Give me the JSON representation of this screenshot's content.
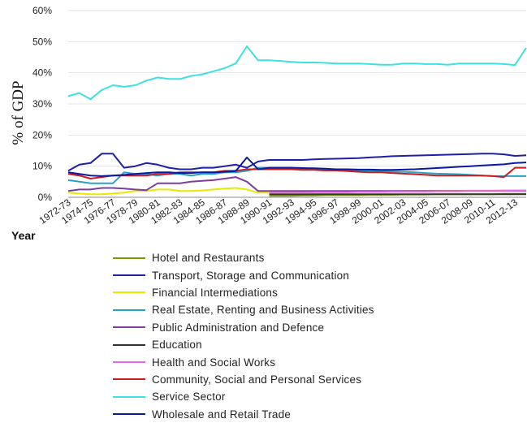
{
  "chart_data": {
    "type": "line",
    "xlabel": "Year",
    "ylabel": "% of GDP",
    "ylim": [
      0,
      60
    ],
    "yticks": [
      "0%",
      "10%",
      "20%",
      "30%",
      "40%",
      "50%",
      "60%"
    ],
    "x": [
      "1972-73",
      "1973-74",
      "1974-75",
      "1975-76",
      "1976-77",
      "1977-78",
      "1978-79",
      "1979-80",
      "1980-81",
      "1981-82",
      "1982-83",
      "1983-84",
      "1984-85",
      "1985-86",
      "1986-87",
      "1987-88",
      "1988-89",
      "1989-90",
      "1990-91",
      "1991-92",
      "1992-93",
      "1993-94",
      "1994-95",
      "1995-96",
      "1996-97",
      "1997-98",
      "1998-99",
      "1999-00",
      "2000-01",
      "2001-02",
      "2002-03",
      "2003-04",
      "2004-05",
      "2005-06",
      "2006-07",
      "2007-08",
      "2008-09",
      "2009-10",
      "2010-11",
      "2011-12",
      "2012-13",
      "2013-14"
    ],
    "xtick_labels": [
      "1972-73",
      "1974-75",
      "1976-77",
      "1978-79",
      "1980-81",
      "1982-83",
      "1984-85",
      "1986-87",
      "1988-89",
      "1990-91",
      "1992-93",
      "1994-95",
      "1996-97",
      "1998-99",
      "2000-01",
      "2002-03",
      "2004-05",
      "2006-07",
      "2008-09",
      "2010-11",
      "2012-13"
    ],
    "legend_position": "bottom",
    "series": [
      {
        "name": "Hotel and Restaurants",
        "color": "#7a9a01",
        "values": [
          null,
          null,
          null,
          null,
          null,
          null,
          null,
          null,
          null,
          null,
          null,
          null,
          null,
          null,
          null,
          null,
          null,
          null,
          0.5,
          0.5,
          0.5,
          0.6,
          0.6,
          0.7,
          0.7,
          0.7,
          0.7,
          0.8,
          0.8,
          0.8,
          0.9,
          0.9,
          0.9,
          1.0,
          1.0,
          1.0,
          1.0,
          1.0,
          1.0,
          1.1,
          1.1,
          1.1
        ]
      },
      {
        "name": "Transport, Storage and Communication",
        "color": "#1f1fa8",
        "values": [
          8.5,
          10.5,
          11,
          14,
          14,
          9.5,
          10,
          11,
          10.5,
          9.5,
          9,
          9,
          9.5,
          9.5,
          10,
          10.5,
          9.5,
          11.5,
          12,
          12,
          12,
          12,
          12.2,
          12.3,
          12.4,
          12.5,
          12.6,
          12.8,
          13,
          13.2,
          13.3,
          13.4,
          13.5,
          13.6,
          13.7,
          13.8,
          13.9,
          14,
          14,
          13.8,
          13.3,
          13.5
        ]
      },
      {
        "name": "Financial Intermediations",
        "color": "#e8e800",
        "values": [
          1.5,
          1.2,
          1.0,
          1.0,
          1.2,
          1.5,
          2.0,
          2.0,
          2.5,
          2.5,
          2.0,
          2.0,
          2.2,
          2.5,
          2.8,
          3.0,
          2.5,
          1.5,
          1.5,
          1.5,
          1.6,
          1.6,
          1.7,
          1.7,
          1.8,
          1.8,
          1.8,
          1.9,
          1.9,
          1.9,
          2.0,
          2.0,
          2.0,
          2.1,
          2.1,
          2.1,
          2.2,
          2.2,
          2.2,
          2.3,
          2.3,
          2.3
        ]
      },
      {
        "name": "Real Estate, Renting and Business Activities",
        "color": "#2aa0c8",
        "values": [
          5.5,
          5,
          4.5,
          4.5,
          4.5,
          8,
          7.5,
          7.5,
          7,
          7.5,
          7.5,
          7,
          7.5,
          7.5,
          8,
          8,
          8.5,
          9.5,
          9.5,
          9.5,
          9.5,
          9,
          9,
          8.8,
          8.8,
          8.6,
          8.5,
          8.5,
          8.4,
          8.3,
          8.2,
          8.0,
          7.8,
          7.6,
          7.5,
          7.4,
          7.2,
          7.0,
          6.8,
          6.8,
          6.8,
          6.8
        ]
      },
      {
        "name": "Public Administration and Defence",
        "color": "#7b3fa0",
        "values": [
          2.0,
          2.5,
          2.5,
          3.0,
          3.0,
          2.8,
          2.5,
          2.3,
          4.5,
          4.5,
          4.5,
          5.0,
          5.3,
          5.5,
          6.0,
          6.5,
          5.0,
          2.0,
          2.0,
          2.0,
          2.0,
          2.0,
          2.0,
          2.0,
          2.0,
          2.0,
          2.0,
          2.0,
          2.0,
          2.0,
          2.0,
          2.0,
          2.0,
          2.0,
          2.0,
          2.0,
          2.0,
          2.0,
          2.0,
          2.0,
          2.0,
          2.0
        ]
      },
      {
        "name": "Education",
        "color": "#333333",
        "values": [
          null,
          null,
          null,
          null,
          null,
          null,
          null,
          null,
          null,
          null,
          null,
          null,
          null,
          null,
          null,
          null,
          null,
          null,
          1.0,
          1.0,
          1.0,
          1.0,
          1.0,
          1.0,
          1.0,
          1.0,
          1.0,
          1.0,
          1.0,
          1.0,
          1.0,
          1.0,
          1.0,
          1.0,
          1.0,
          1.0,
          1.0,
          1.0,
          1.0,
          1.0,
          1.0,
          1.0
        ]
      },
      {
        "name": "Health and Social Works",
        "color": "#e86ae8",
        "values": [
          null,
          null,
          null,
          null,
          null,
          null,
          null,
          null,
          null,
          null,
          null,
          null,
          null,
          null,
          null,
          null,
          null,
          null,
          1.5,
          1.5,
          1.5,
          1.5,
          1.6,
          1.6,
          1.6,
          1.6,
          1.7,
          1.7,
          1.7,
          1.8,
          1.8,
          1.8,
          1.8,
          1.9,
          1.9,
          1.9,
          2.0,
          2.0,
          2.0,
          2.0,
          2.1,
          2.1
        ]
      },
      {
        "name": "Community, Social and Personal Services",
        "color": "#c81e1e",
        "values": [
          7.5,
          7.0,
          6.0,
          6.5,
          7.0,
          7.0,
          7.0,
          7.0,
          7.5,
          7.5,
          8.0,
          8.0,
          8.0,
          8.0,
          8.5,
          8.5,
          9.0,
          9.0,
          9.0,
          9.0,
          9.0,
          8.8,
          8.8,
          8.6,
          8.6,
          8.4,
          8.2,
          8.0,
          8.0,
          7.8,
          7.6,
          7.4,
          7.2,
          7.0,
          7.0,
          7.0,
          7.0,
          7.0,
          6.8,
          6.5,
          9.5,
          9.5
        ]
      },
      {
        "name": "Service Sector",
        "color": "#3ee0e0",
        "values": [
          32.5,
          33.5,
          31.5,
          34.5,
          36,
          35.5,
          36,
          37.5,
          38.5,
          38,
          38,
          39,
          39.5,
          40.5,
          41.5,
          43,
          48.5,
          44,
          44,
          43.8,
          43.5,
          43.3,
          43.3,
          43.2,
          43,
          43,
          43,
          42.8,
          42.6,
          42.6,
          43,
          43,
          42.8,
          42.8,
          42.6,
          43,
          43,
          43,
          43,
          42.8,
          42.5,
          48
        ]
      },
      {
        "name": "Wholesale and Retail Trade",
        "color": "#0a1aa0",
        "values": [
          8.0,
          7.5,
          7.0,
          6.8,
          7.0,
          7.2,
          7.5,
          7.8,
          8.0,
          8.0,
          7.8,
          7.8,
          8.0,
          8.0,
          8.2,
          8.4,
          12.8,
          9.0,
          9.5,
          9.5,
          9.5,
          9.4,
          9.3,
          9.2,
          9.0,
          9.0,
          8.9,
          8.9,
          8.8,
          8.8,
          8.9,
          9.0,
          9.2,
          9.4,
          9.6,
          9.8,
          10.0,
          10.2,
          10.4,
          10.6,
          11.0,
          11.2
        ]
      }
    ]
  }
}
